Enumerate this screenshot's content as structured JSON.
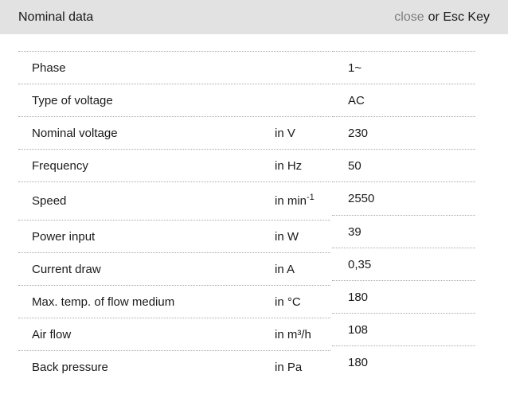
{
  "header": {
    "title": "Nominal data",
    "close_label": "close",
    "close_suffix": "or Esc Key"
  },
  "colors": {
    "header_bg": "#e2e2e2",
    "divider": "#a8a8a8",
    "close_link": "#7d7d7d",
    "text": "#1a1a1a"
  },
  "rows": [
    {
      "label": "Phase",
      "unit": "",
      "value": "1~"
    },
    {
      "label": "Type of voltage",
      "unit": "",
      "value": "AC"
    },
    {
      "label": "Nominal voltage",
      "unit": "in V",
      "value": "230"
    },
    {
      "label": "Frequency",
      "unit": "in Hz",
      "value": "50"
    },
    {
      "label": "Speed",
      "unit": "in min",
      "unit_sup": "-1",
      "value": "2550"
    },
    {
      "label": "Power input",
      "unit": "in W",
      "value": "39"
    },
    {
      "label": "Current draw",
      "unit": "in A",
      "value": "0,35"
    },
    {
      "label": "Max. temp. of flow medium",
      "unit": "in °C",
      "value": "180"
    },
    {
      "label": "Air flow",
      "unit": "in m³/h",
      "value": "108"
    },
    {
      "label": "Back pressure",
      "unit": "in Pa",
      "value": "180"
    }
  ]
}
